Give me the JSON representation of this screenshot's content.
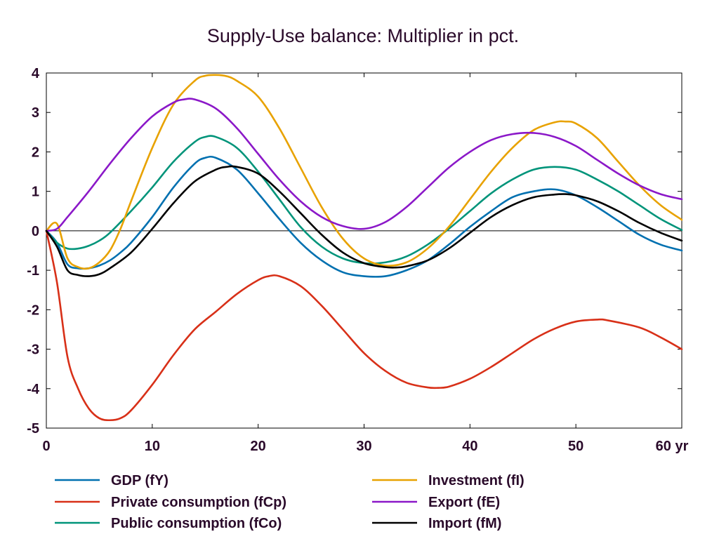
{
  "chart_data": {
    "type": "line",
    "title": "Supply-Use balance: Multiplier in pct.",
    "xlabel": "",
    "ylabel": "",
    "xlim": [
      0,
      60
    ],
    "ylim": [
      -5,
      4
    ],
    "x_ticks": [
      {
        "value": 0,
        "label": "0"
      },
      {
        "value": 10,
        "label": "10"
      },
      {
        "value": 20,
        "label": "20"
      },
      {
        "value": 30,
        "label": "30"
      },
      {
        "value": 40,
        "label": "40"
      },
      {
        "value": 50,
        "label": "50"
      },
      {
        "value": 60,
        "label": "60 yr"
      }
    ],
    "y_ticks": [
      {
        "value": 4,
        "label": "4"
      },
      {
        "value": 3,
        "label": "3"
      },
      {
        "value": 2,
        "label": "2"
      },
      {
        "value": 1,
        "label": "1"
      },
      {
        "value": 0,
        "label": "0"
      },
      {
        "value": -1,
        "label": "-1"
      },
      {
        "value": -2,
        "label": "-2"
      },
      {
        "value": -3,
        "label": "-3"
      },
      {
        "value": -4,
        "label": "-4"
      },
      {
        "value": -5,
        "label": "-5"
      }
    ],
    "zero_line": true,
    "grid": false,
    "legend_position": "bottom",
    "series": [
      {
        "name": "GDP (fY)",
        "color": "#0070b0",
        "x": [
          0,
          1,
          2,
          3,
          4,
          5,
          6,
          7,
          8,
          10,
          12,
          14,
          15,
          16,
          18,
          20,
          22,
          24,
          26,
          28,
          30,
          32,
          34,
          36,
          38,
          40,
          42,
          44,
          46,
          48,
          50,
          52,
          54,
          56,
          58,
          60
        ],
        "y": [
          0,
          -0.3,
          -0.85,
          -0.95,
          -0.95,
          -0.88,
          -0.75,
          -0.55,
          -0.3,
          0.35,
          1.1,
          1.7,
          1.85,
          1.85,
          1.55,
          0.95,
          0.3,
          -0.3,
          -0.75,
          -1.05,
          -1.15,
          -1.15,
          -1.0,
          -0.75,
          -0.35,
          0.1,
          0.5,
          0.85,
          1.0,
          1.05,
          0.9,
          0.6,
          0.25,
          -0.1,
          -0.35,
          -0.5
        ]
      },
      {
        "name": "Private consumption (fCp)",
        "color": "#d83018",
        "x": [
          0,
          1,
          2,
          3,
          4,
          5,
          6,
          7,
          8,
          10,
          12,
          14,
          16,
          18,
          20,
          21,
          22,
          24,
          26,
          28,
          30,
          32,
          34,
          36,
          37,
          38,
          40,
          42,
          44,
          46,
          48,
          50,
          52,
          53,
          56,
          58,
          60
        ],
        "y": [
          0,
          -1.3,
          -3.2,
          -4.0,
          -4.5,
          -4.75,
          -4.8,
          -4.75,
          -4.55,
          -3.9,
          -3.15,
          -2.5,
          -2.05,
          -1.6,
          -1.25,
          -1.15,
          -1.15,
          -1.4,
          -1.9,
          -2.5,
          -3.1,
          -3.55,
          -3.85,
          -3.97,
          -3.98,
          -3.95,
          -3.75,
          -3.45,
          -3.1,
          -2.75,
          -2.48,
          -2.3,
          -2.25,
          -2.27,
          -2.45,
          -2.7,
          -3.0
        ]
      },
      {
        "name": "Public consumption (fCo)",
        "color": "#00947a",
        "x": [
          0,
          1,
          2,
          3,
          4,
          5,
          6,
          8,
          10,
          12,
          14,
          15,
          16,
          18,
          20,
          22,
          24,
          26,
          28,
          30,
          32,
          34,
          36,
          38,
          40,
          42,
          44,
          46,
          48,
          50,
          52,
          54,
          56,
          58,
          60
        ],
        "y": [
          0,
          -0.3,
          -0.45,
          -0.45,
          -0.38,
          -0.25,
          -0.05,
          0.5,
          1.1,
          1.75,
          2.25,
          2.38,
          2.38,
          2.1,
          1.5,
          0.8,
          0.1,
          -0.4,
          -0.7,
          -0.82,
          -0.8,
          -0.65,
          -0.35,
          0.05,
          0.5,
          0.95,
          1.3,
          1.55,
          1.62,
          1.55,
          1.3,
          1.0,
          0.65,
          0.3,
          0.02
        ]
      },
      {
        "name": "Investment (fI)",
        "color": "#e8a200",
        "x": [
          0,
          1,
          2,
          3,
          4,
          5,
          6,
          7,
          8,
          10,
          12,
          14,
          15,
          16,
          17,
          18,
          20,
          22,
          24,
          26,
          28,
          30,
          32,
          34,
          36,
          38,
          40,
          42,
          44,
          46,
          48,
          49,
          50,
          52,
          54,
          56,
          58,
          60
        ],
        "y": [
          0,
          0.18,
          -0.7,
          -0.92,
          -0.95,
          -0.8,
          -0.5,
          0.05,
          0.75,
          2.1,
          3.2,
          3.8,
          3.93,
          3.95,
          3.92,
          3.8,
          3.4,
          2.6,
          1.6,
          0.6,
          -0.2,
          -0.7,
          -0.88,
          -0.8,
          -0.45,
          0.1,
          0.8,
          1.5,
          2.1,
          2.55,
          2.75,
          2.77,
          2.72,
          2.35,
          1.75,
          1.15,
          0.65,
          0.28
        ]
      },
      {
        "name": "Export (fE)",
        "color": "#8b18c8",
        "x": [
          0,
          1,
          2,
          4,
          6,
          8,
          10,
          12,
          13,
          14,
          16,
          18,
          20,
          22,
          24,
          26,
          28,
          30,
          32,
          34,
          36,
          38,
          40,
          42,
          44,
          46,
          48,
          50,
          52,
          54,
          56,
          58,
          60
        ],
        "y": [
          0,
          0.05,
          0.35,
          1.0,
          1.7,
          2.35,
          2.9,
          3.25,
          3.33,
          3.33,
          3.1,
          2.6,
          1.95,
          1.3,
          0.75,
          0.35,
          0.12,
          0.05,
          0.22,
          0.6,
          1.1,
          1.6,
          2.0,
          2.3,
          2.45,
          2.48,
          2.38,
          2.15,
          1.8,
          1.45,
          1.15,
          0.93,
          0.8
        ]
      },
      {
        "name": "Import (fM)",
        "color": "#000000",
        "x": [
          0,
          1,
          2,
          3,
          4,
          5,
          6,
          8,
          10,
          12,
          14,
          16,
          17,
          18,
          20,
          22,
          24,
          26,
          28,
          30,
          32,
          33,
          34,
          36,
          38,
          40,
          42,
          44,
          46,
          48,
          49,
          50,
          52,
          54,
          56,
          58,
          60
        ],
        "y": [
          0,
          -0.4,
          -1.0,
          -1.12,
          -1.15,
          -1.1,
          -0.95,
          -0.55,
          0.05,
          0.7,
          1.25,
          1.55,
          1.62,
          1.62,
          1.45,
          1.0,
          0.45,
          -0.1,
          -0.55,
          -0.82,
          -0.92,
          -0.93,
          -0.9,
          -0.75,
          -0.45,
          -0.05,
          0.35,
          0.65,
          0.85,
          0.92,
          0.93,
          0.9,
          0.75,
          0.5,
          0.2,
          -0.05,
          -0.25
        ]
      }
    ]
  }
}
